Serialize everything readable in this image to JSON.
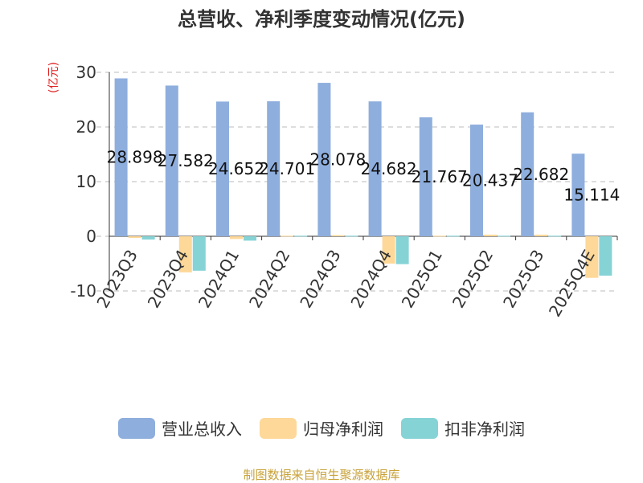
{
  "title": "总营收、净利季度变动情况(亿元)",
  "unit_label": "(亿元)",
  "source": "制图数据来自恒生聚源数据库",
  "colors": {
    "revenue": "#8eaedd",
    "net_profit": "#fdd898",
    "deducted_profit": "#86d3d6",
    "grid": "#bbbbbb",
    "axis": "#333333"
  },
  "chart_data": {
    "type": "bar",
    "title": "总营收、净利季度变动情况(亿元)",
    "ylabel": "(亿元)",
    "ylim": [
      -10,
      30
    ],
    "yticks": [
      30,
      20,
      10,
      0,
      -10
    ],
    "grid": true,
    "legend_position": "bottom",
    "categories": [
      "2023Q3",
      "2023Q4",
      "2024Q1",
      "2024Q2",
      "2024Q3",
      "2024Q4",
      "2025Q1",
      "2025Q2",
      "2025Q3",
      "2025Q4E"
    ],
    "series": [
      {
        "name": "营业总收入",
        "color": "#8eaedd",
        "values": [
          28.898,
          27.582,
          24.652,
          24.701,
          28.078,
          24.682,
          21.767,
          20.437,
          22.682,
          15.114
        ],
        "labels": [
          "28.898",
          "27.582",
          "24.652",
          "24.701",
          "28.078",
          "24.682",
          "21.767",
          "20.437",
          "22.682",
          "15.114"
        ]
      },
      {
        "name": "归母净利润",
        "color": "#fdd898",
        "values": [
          -0.3,
          -6.6,
          -0.5,
          0.1,
          0.2,
          -5.0,
          0.1,
          0.3,
          0.3,
          -7.6
        ]
      },
      {
        "name": "扣非净利润",
        "color": "#86d3d6",
        "values": [
          -0.6,
          -6.3,
          -0.8,
          0.1,
          0.1,
          -5.1,
          0.1,
          0.1,
          0.1,
          -7.2
        ]
      }
    ]
  }
}
